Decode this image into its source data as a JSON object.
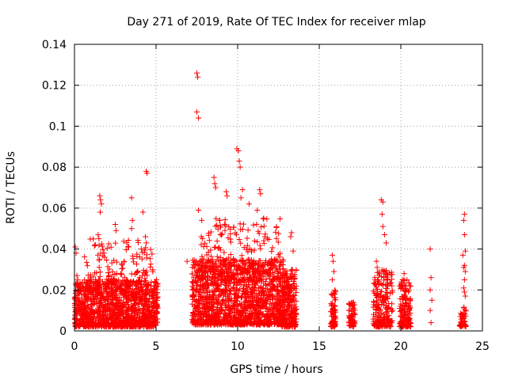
{
  "chart_data": {
    "type": "scatter",
    "title": "Day 271 of 2019, Rate Of TEC Index for receiver mlap",
    "xlabel": "GPS time / hours",
    "ylabel": "ROTI / TECUs",
    "xlim": [
      0,
      25
    ],
    "ylim": [
      0,
      0.14
    ],
    "xticks": [
      "0",
      "5",
      "10",
      "15",
      "20",
      "25"
    ],
    "yticks": [
      "0",
      "0.02",
      "0.04",
      "0.06",
      "0.08",
      "0.1",
      "0.12",
      "0.14"
    ],
    "grid": true,
    "marker": "+",
    "color": "#ff0000",
    "series": [
      {
        "name": "ROTI",
        "clusters": [
          {
            "x": [
              0.0,
              5.1
            ],
            "y": [
              0.002,
              0.025
            ],
            "n": 1300
          },
          {
            "x": [
              0.6,
              4.8
            ],
            "y": [
              0.018,
              0.045
            ],
            "n": 180
          },
          {
            "x": [
              7.2,
              12.8
            ],
            "y": [
              0.003,
              0.035
            ],
            "n": 1500
          },
          {
            "x": [
              7.6,
              12.6
            ],
            "y": [
              0.025,
              0.055
            ],
            "n": 220
          },
          {
            "x": [
              12.7,
              13.6
            ],
            "y": [
              0.002,
              0.03
            ],
            "n": 250
          },
          {
            "x": [
              15.7,
              16.0
            ],
            "y": [
              0.002,
              0.02
            ],
            "n": 80
          },
          {
            "x": [
              16.8,
              17.2
            ],
            "y": [
              0.002,
              0.014
            ],
            "n": 70
          },
          {
            "x": [
              18.3,
              19.5
            ],
            "y": [
              0.002,
              0.03
            ],
            "n": 220
          },
          {
            "x": [
              19.9,
              20.6
            ],
            "y": [
              0.002,
              0.025
            ],
            "n": 150
          },
          {
            "x": [
              23.6,
              24.0
            ],
            "y": [
              0.002,
              0.012
            ],
            "n": 50
          }
        ],
        "points": [
          [
            7.5,
            0.126
          ],
          [
            7.55,
            0.124
          ],
          [
            7.5,
            0.107
          ],
          [
            7.6,
            0.104
          ],
          [
            9.95,
            0.089
          ],
          [
            10.05,
            0.088
          ],
          [
            10.1,
            0.083
          ],
          [
            10.15,
            0.08
          ],
          [
            4.4,
            0.078
          ],
          [
            4.45,
            0.077
          ],
          [
            8.55,
            0.075
          ],
          [
            8.6,
            0.072
          ],
          [
            8.65,
            0.07
          ],
          [
            11.35,
            0.069
          ],
          [
            11.4,
            0.067
          ],
          [
            10.3,
            0.069
          ],
          [
            10.2,
            0.065
          ],
          [
            9.3,
            0.068
          ],
          [
            9.35,
            0.066
          ],
          [
            1.55,
            0.066
          ],
          [
            1.6,
            0.064
          ],
          [
            1.65,
            0.062
          ],
          [
            1.58,
            0.058
          ],
          [
            3.5,
            0.065
          ],
          [
            4.2,
            0.058
          ],
          [
            3.55,
            0.054
          ],
          [
            3.5,
            0.05
          ],
          [
            2.5,
            0.052
          ],
          [
            2.55,
            0.049
          ],
          [
            1.45,
            0.047
          ],
          [
            1.5,
            0.045
          ],
          [
            4.35,
            0.046
          ],
          [
            4.4,
            0.043
          ],
          [
            7.6,
            0.059
          ],
          [
            7.8,
            0.054
          ],
          [
            10.7,
            0.062
          ],
          [
            11.2,
            0.059
          ],
          [
            11.6,
            0.055
          ],
          [
            18.8,
            0.064
          ],
          [
            18.9,
            0.063
          ],
          [
            18.85,
            0.057
          ],
          [
            18.9,
            0.051
          ],
          [
            19.0,
            0.047
          ],
          [
            19.1,
            0.043
          ],
          [
            13.3,
            0.048
          ],
          [
            13.25,
            0.046
          ],
          [
            13.4,
            0.039
          ],
          [
            15.8,
            0.037
          ],
          [
            15.85,
            0.034
          ],
          [
            15.9,
            0.029
          ],
          [
            15.8,
            0.025
          ],
          [
            18.5,
            0.034
          ],
          [
            18.55,
            0.031
          ],
          [
            18.7,
            0.028
          ],
          [
            18.6,
            0.025
          ],
          [
            18.4,
            0.023
          ],
          [
            20.2,
            0.028
          ],
          [
            20.1,
            0.025
          ],
          [
            20.3,
            0.022
          ],
          [
            21.8,
            0.04
          ],
          [
            21.85,
            0.026
          ],
          [
            21.8,
            0.02
          ],
          [
            21.9,
            0.015
          ],
          [
            21.8,
            0.01
          ],
          [
            21.85,
            0.004
          ],
          [
            23.9,
            0.057
          ],
          [
            23.85,
            0.054
          ],
          [
            23.9,
            0.047
          ],
          [
            23.95,
            0.039
          ],
          [
            23.8,
            0.037
          ],
          [
            23.9,
            0.032
          ],
          [
            23.85,
            0.031
          ],
          [
            23.95,
            0.029
          ],
          [
            23.9,
            0.025
          ],
          [
            23.85,
            0.021
          ],
          [
            23.9,
            0.019
          ],
          [
            23.95,
            0.017
          ],
          [
            0.05,
            0.041
          ],
          [
            0.1,
            0.038
          ],
          [
            0.15,
            0.027
          ],
          [
            0.2,
            0.025
          ],
          [
            6.9,
            0.034
          ],
          [
            7.3,
            0.021
          ],
          [
            5.0,
            0.012
          ],
          [
            5.1,
            0.011
          ]
        ]
      }
    ]
  }
}
